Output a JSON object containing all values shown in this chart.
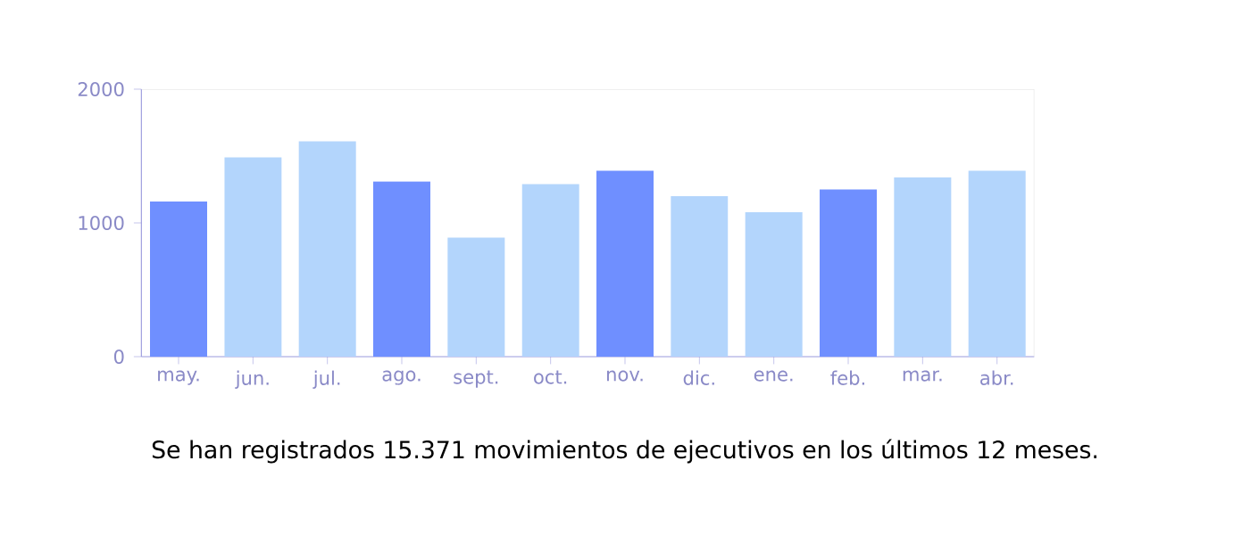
{
  "chart_data": {
    "type": "bar",
    "categories": [
      "may.",
      "jun.",
      "jul.",
      "ago.",
      "sept.",
      "oct.",
      "nov.",
      "dic.",
      "ene.",
      "feb.",
      "mar.",
      "abr."
    ],
    "values": [
      1160,
      1490,
      1610,
      1310,
      890,
      1290,
      1390,
      1200,
      1080,
      1250,
      1340,
      1390
    ],
    "colors": [
      "#6f8fff",
      "#b3d5fc",
      "#b3d5fc",
      "#6f8fff",
      "#b3d5fc",
      "#b3d5fc",
      "#6f8fff",
      "#b3d5fc",
      "#b3d5fc",
      "#6f8fff",
      "#b3d5fc",
      "#b3d5fc"
    ],
    "ylim": [
      0,
      2000
    ],
    "yticks": [
      0,
      1000,
      2000
    ],
    "annotations": [
      "Se han registrados 15.371 movimientos de ejecutivos en los últimos 12 meses."
    ]
  }
}
